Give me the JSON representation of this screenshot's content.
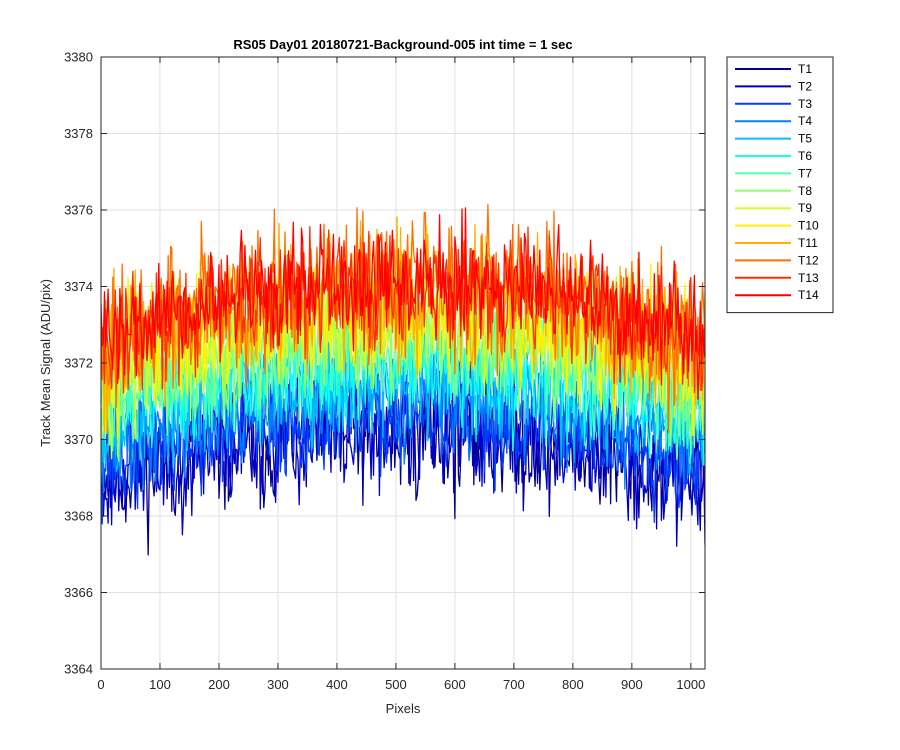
{
  "chart_data": {
    "type": "line",
    "title": "RS05 Day01 20180721-Background-005 int time = 1 sec",
    "xlabel": "Pixels",
    "ylabel": "Track Mean Signal (ADU/pix)",
    "xlim": [
      0,
      1024
    ],
    "ylim": [
      3364,
      3380
    ],
    "xticks": [
      0,
      100,
      200,
      300,
      400,
      500,
      600,
      700,
      800,
      900,
      1000
    ],
    "yticks": [
      3364,
      3366,
      3368,
      3370,
      3372,
      3374,
      3376,
      3378,
      3380
    ],
    "grid": true,
    "legend_position": "outside-top-right",
    "x_step": 2,
    "series": [
      {
        "name": "T1",
        "color": "#00008F",
        "base": 3369.0,
        "arch": 1.2,
        "noise": 1.15,
        "seed": 11
      },
      {
        "name": "T2",
        "color": "#0000C8",
        "base": 3369.0,
        "arch": 1.2,
        "noise": 1.05,
        "seed": 23
      },
      {
        "name": "T3",
        "color": "#0040FF",
        "base": 3369.4,
        "arch": 1.2,
        "noise": 0.95,
        "seed": 37
      },
      {
        "name": "T4",
        "color": "#0080FF",
        "base": 3369.9,
        "arch": 1.3,
        "noise": 0.95,
        "seed": 41
      },
      {
        "name": "T5",
        "color": "#00BFFF",
        "base": 3370.3,
        "arch": 1.3,
        "noise": 0.95,
        "seed": 53
      },
      {
        "name": "T6",
        "color": "#10FFEF",
        "base": 3370.6,
        "arch": 1.3,
        "noise": 0.95,
        "seed": 61
      },
      {
        "name": "T7",
        "color": "#50FFAF",
        "base": 3371.0,
        "arch": 1.35,
        "noise": 0.95,
        "seed": 71
      },
      {
        "name": "T8",
        "color": "#8FFF70",
        "base": 3371.3,
        "arch": 1.35,
        "noise": 1.0,
        "seed": 83
      },
      {
        "name": "T9",
        "color": "#CFFF30",
        "base": 3371.7,
        "arch": 1.4,
        "noise": 1.05,
        "seed": 97
      },
      {
        "name": "T10",
        "color": "#FFEF00",
        "base": 3372.0,
        "arch": 1.45,
        "noise": 1.1,
        "seed": 101
      },
      {
        "name": "T11",
        "color": "#FFAF00",
        "base": 3372.3,
        "arch": 1.5,
        "noise": 1.15,
        "seed": 113
      },
      {
        "name": "T12",
        "color": "#FF7000",
        "base": 3372.5,
        "arch": 1.55,
        "noise": 1.2,
        "seed": 127
      },
      {
        "name": "T13",
        "color": "#FF3000",
        "base": 3372.5,
        "arch": 1.55,
        "noise": 1.0,
        "seed": 131
      },
      {
        "name": "T14",
        "color": "#FF0000",
        "base": 3372.6,
        "arch": 1.6,
        "noise": 0.95,
        "seed": 139
      }
    ]
  }
}
